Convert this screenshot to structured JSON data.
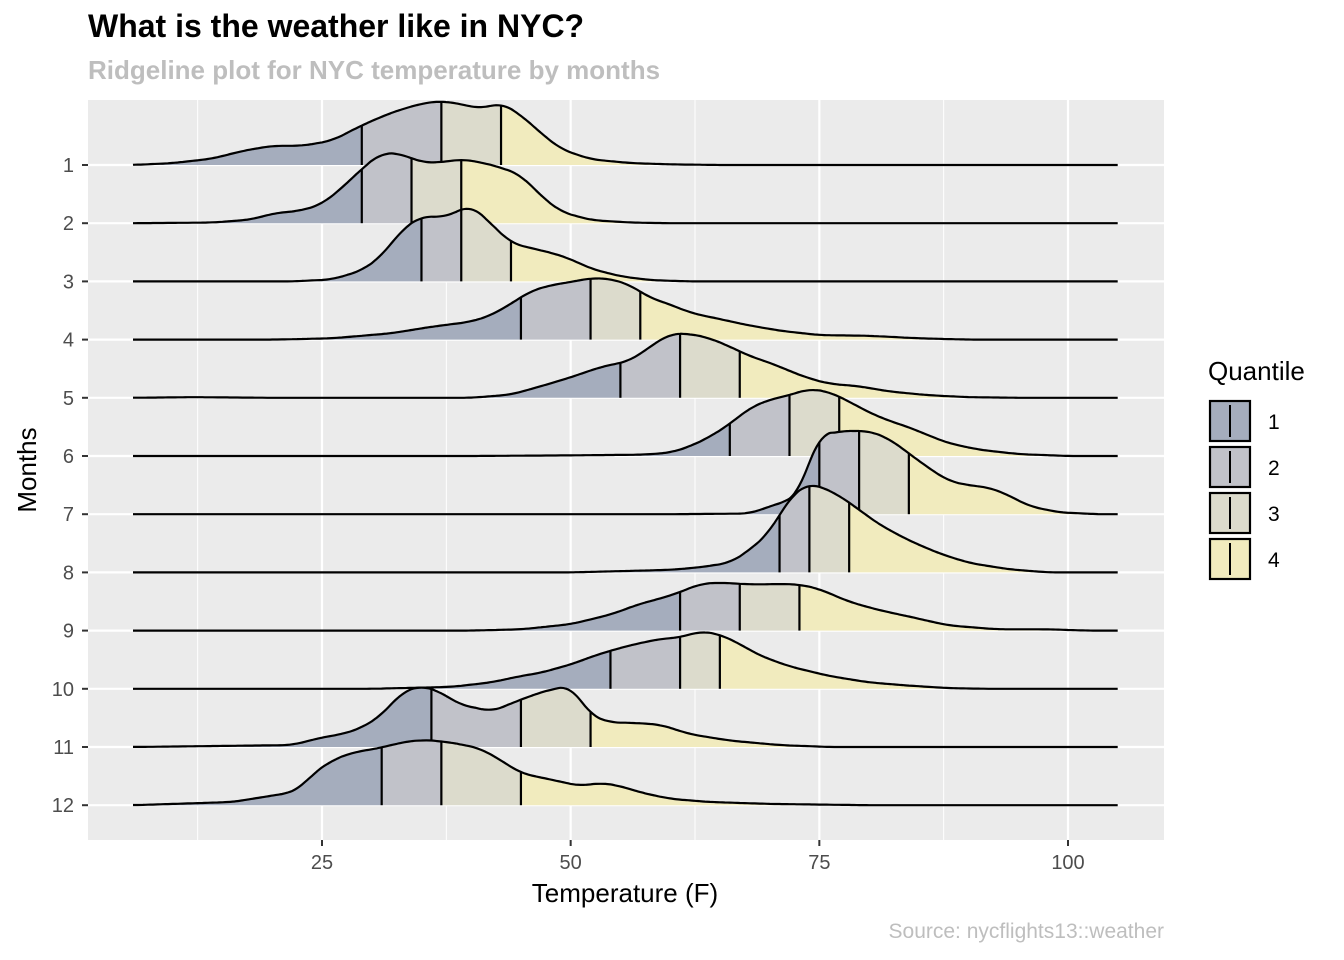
{
  "chart_data": {
    "type": "ridgeline",
    "title": "What is the weather like in NYC?",
    "subtitle": "Ridgeline plot for NYC temperature by months",
    "caption": "Source: nycflights13::weather",
    "xlabel": "Temperature (F)",
    "ylabel": "Months",
    "xlim": [
      5,
      110
    ],
    "x_ticks": [
      25,
      50,
      75,
      100
    ],
    "categories": [
      "1",
      "2",
      "3",
      "4",
      "5",
      "6",
      "7",
      "8",
      "9",
      "10",
      "11",
      "12"
    ],
    "legend": {
      "title": "Quantile",
      "position": "right",
      "entries": [
        {
          "label": "1",
          "color": "#a5adbd"
        },
        {
          "label": "2",
          "color": "#c1c2c9"
        },
        {
          "label": "3",
          "color": "#dcdbcc"
        },
        {
          "label": "4",
          "color": "#f1ebbe"
        }
      ]
    },
    "fill_alpha": 0.5,
    "density_scale_months": 1.1,
    "series": [
      {
        "name": "1",
        "quantiles": [
          29,
          37,
          43
        ],
        "density": [
          [
            6,
            0
          ],
          [
            10,
            0.03
          ],
          [
            14,
            0.1
          ],
          [
            17,
            0.22
          ],
          [
            20,
            0.3
          ],
          [
            23,
            0.3
          ],
          [
            26,
            0.38
          ],
          [
            29,
            0.62
          ],
          [
            32,
            0.82
          ],
          [
            35,
            0.96
          ],
          [
            37,
            1.0
          ],
          [
            39,
            0.95
          ],
          [
            41,
            0.88
          ],
          [
            43,
            0.97
          ],
          [
            45,
            0.78
          ],
          [
            47,
            0.5
          ],
          [
            49,
            0.25
          ],
          [
            52,
            0.09
          ],
          [
            56,
            0.03
          ],
          [
            60,
            0.01
          ],
          [
            65,
            0
          ],
          [
            105,
            0
          ]
        ]
      },
      {
        "name": "2",
        "quantiles": [
          29,
          34,
          39
        ],
        "density": [
          [
            6,
            0
          ],
          [
            14,
            0.01
          ],
          [
            18,
            0.06
          ],
          [
            20,
            0.15
          ],
          [
            23,
            0.2
          ],
          [
            25,
            0.3
          ],
          [
            27,
            0.55
          ],
          [
            29,
            0.85
          ],
          [
            31,
            1.1
          ],
          [
            33,
            1.08
          ],
          [
            35,
            0.95
          ],
          [
            37,
            0.95
          ],
          [
            39,
            1.0
          ],
          [
            41,
            0.95
          ],
          [
            43,
            0.87
          ],
          [
            45,
            0.75
          ],
          [
            47,
            0.43
          ],
          [
            49,
            0.18
          ],
          [
            52,
            0.05
          ],
          [
            56,
            0.01
          ],
          [
            60,
            0
          ],
          [
            105,
            0
          ]
        ]
      },
      {
        "name": "3",
        "quantiles": [
          35,
          39,
          44
        ],
        "density": [
          [
            6,
            0
          ],
          [
            22,
            0
          ],
          [
            26,
            0.03
          ],
          [
            29,
            0.17
          ],
          [
            31,
            0.4
          ],
          [
            33,
            0.8
          ],
          [
            35,
            1.02
          ],
          [
            37,
            1.0
          ],
          [
            38,
            1.05
          ],
          [
            40,
            1.19
          ],
          [
            42,
            0.9
          ],
          [
            44,
            0.6
          ],
          [
            46,
            0.52
          ],
          [
            48,
            0.45
          ],
          [
            50,
            0.35
          ],
          [
            52,
            0.2
          ],
          [
            55,
            0.08
          ],
          [
            58,
            0.02
          ],
          [
            62,
            0
          ],
          [
            105,
            0
          ]
        ]
      },
      {
        "name": "4",
        "quantiles": [
          45,
          52,
          57
        ],
        "density": [
          [
            6,
            0
          ],
          [
            20,
            0
          ],
          [
            26,
            0.02
          ],
          [
            32,
            0.1
          ],
          [
            36,
            0.2
          ],
          [
            40,
            0.28
          ],
          [
            42,
            0.38
          ],
          [
            44,
            0.56
          ],
          [
            46,
            0.76
          ],
          [
            48,
            0.85
          ],
          [
            50,
            0.9
          ],
          [
            52,
            0.96
          ],
          [
            54,
            0.95
          ],
          [
            56,
            0.85
          ],
          [
            58,
            0.65
          ],
          [
            60,
            0.55
          ],
          [
            62,
            0.42
          ],
          [
            65,
            0.32
          ],
          [
            68,
            0.22
          ],
          [
            71,
            0.14
          ],
          [
            75,
            0.07
          ],
          [
            80,
            0.06
          ],
          [
            85,
            0.02
          ],
          [
            90,
            0
          ],
          [
            105,
            0
          ]
        ]
      },
      {
        "name": "5",
        "quantiles": [
          55,
          61,
          67
        ],
        "density": [
          [
            6,
            0
          ],
          [
            12,
            0.01
          ],
          [
            20,
            0
          ],
          [
            30,
            0
          ],
          [
            40,
            0
          ],
          [
            44,
            0.05
          ],
          [
            47,
            0.18
          ],
          [
            50,
            0.32
          ],
          [
            53,
            0.48
          ],
          [
            56,
            0.58
          ],
          [
            58,
            0.8
          ],
          [
            60,
            1.0
          ],
          [
            62,
            1.0
          ],
          [
            64,
            0.93
          ],
          [
            66,
            0.8
          ],
          [
            68,
            0.65
          ],
          [
            70,
            0.55
          ],
          [
            72,
            0.42
          ],
          [
            74,
            0.3
          ],
          [
            76,
            0.22
          ],
          [
            79,
            0.18
          ],
          [
            82,
            0.1
          ],
          [
            86,
            0.04
          ],
          [
            90,
            0.01
          ],
          [
            95,
            0
          ],
          [
            105,
            0
          ]
        ]
      },
      {
        "name": "6",
        "quantiles": [
          66,
          72,
          77
        ],
        "density": [
          [
            6,
            0
          ],
          [
            40,
            0
          ],
          [
            50,
            0.01
          ],
          [
            57,
            0.02
          ],
          [
            60,
            0.05
          ],
          [
            62,
            0.15
          ],
          [
            64,
            0.3
          ],
          [
            66,
            0.5
          ],
          [
            68,
            0.75
          ],
          [
            70,
            0.88
          ],
          [
            72,
            0.95
          ],
          [
            74,
            1.05
          ],
          [
            76,
            1.0
          ],
          [
            78,
            0.85
          ],
          [
            80,
            0.68
          ],
          [
            82,
            0.55
          ],
          [
            84,
            0.45
          ],
          [
            86,
            0.32
          ],
          [
            88,
            0.2
          ],
          [
            91,
            0.1
          ],
          [
            95,
            0.03
          ],
          [
            100,
            0
          ],
          [
            105,
            0
          ]
        ]
      },
      {
        "name": "7",
        "quantiles": [
          75,
          79,
          84
        ],
        "density": [
          [
            6,
            0
          ],
          [
            50,
            0
          ],
          [
            60,
            0
          ],
          [
            68,
            0.01
          ],
          [
            70,
            0.12
          ],
          [
            72,
            0.22
          ],
          [
            73,
            0.35
          ],
          [
            74,
            0.82
          ],
          [
            75,
            1.25
          ],
          [
            76,
            1.25
          ],
          [
            77,
            1.3
          ],
          [
            78,
            1.3
          ],
          [
            80,
            1.3
          ],
          [
            82,
            1.18
          ],
          [
            84,
            0.95
          ],
          [
            86,
            0.72
          ],
          [
            88,
            0.52
          ],
          [
            90,
            0.45
          ],
          [
            92,
            0.42
          ],
          [
            94,
            0.3
          ],
          [
            96,
            0.13
          ],
          [
            99,
            0.03
          ],
          [
            103,
            0
          ],
          [
            105,
            0
          ]
        ]
      },
      {
        "name": "8",
        "quantiles": [
          71,
          74,
          78
        ],
        "density": [
          [
            6,
            0
          ],
          [
            50,
            0
          ],
          [
            60,
            0.04
          ],
          [
            63,
            0.08
          ],
          [
            66,
            0.15
          ],
          [
            68,
            0.35
          ],
          [
            70,
            0.63
          ],
          [
            71,
            0.9
          ],
          [
            72,
            1.15
          ],
          [
            73,
            1.3
          ],
          [
            74,
            1.38
          ],
          [
            75,
            1.35
          ],
          [
            77,
            1.2
          ],
          [
            79,
            0.98
          ],
          [
            81,
            0.75
          ],
          [
            84,
            0.5
          ],
          [
            87,
            0.3
          ],
          [
            90,
            0.15
          ],
          [
            94,
            0.05
          ],
          [
            98,
            0
          ],
          [
            105,
            0
          ]
        ]
      },
      {
        "name": "9",
        "quantiles": [
          61,
          67,
          73
        ],
        "density": [
          [
            6,
            0
          ],
          [
            40,
            0
          ],
          [
            45,
            0.02
          ],
          [
            50,
            0.1
          ],
          [
            54,
            0.25
          ],
          [
            57,
            0.42
          ],
          [
            59,
            0.5
          ],
          [
            61,
            0.6
          ],
          [
            63,
            0.73
          ],
          [
            65,
            0.75
          ],
          [
            67,
            0.73
          ],
          [
            69,
            0.72
          ],
          [
            71,
            0.73
          ],
          [
            73,
            0.72
          ],
          [
            75,
            0.65
          ],
          [
            78,
            0.45
          ],
          [
            81,
            0.32
          ],
          [
            84,
            0.22
          ],
          [
            88,
            0.08
          ],
          [
            93,
            0.02
          ],
          [
            98,
            0.02
          ],
          [
            102,
            0
          ],
          [
            105,
            0
          ]
        ]
      },
      {
        "name": "10",
        "quantiles": [
          54,
          61,
          65
        ],
        "density": [
          [
            6,
            0
          ],
          [
            30,
            0
          ],
          [
            38,
            0.03
          ],
          [
            42,
            0.1
          ],
          [
            45,
            0.2
          ],
          [
            47,
            0.25
          ],
          [
            50,
            0.38
          ],
          [
            53,
            0.55
          ],
          [
            56,
            0.68
          ],
          [
            59,
            0.78
          ],
          [
            61,
            0.8
          ],
          [
            63,
            0.9
          ],
          [
            65,
            0.85
          ],
          [
            67,
            0.7
          ],
          [
            69,
            0.52
          ],
          [
            72,
            0.35
          ],
          [
            76,
            0.2
          ],
          [
            80,
            0.1
          ],
          [
            84,
            0.05
          ],
          [
            88,
            0.01
          ],
          [
            92,
            0
          ],
          [
            105,
            0
          ]
        ]
      },
      {
        "name": "11",
        "quantiles": [
          36,
          45,
          52
        ],
        "density": [
          [
            6,
            0
          ],
          [
            22,
            0.03
          ],
          [
            25,
            0.15
          ],
          [
            27,
            0.2
          ],
          [
            29,
            0.3
          ],
          [
            31,
            0.5
          ],
          [
            33,
            0.85
          ],
          [
            35,
            0.96
          ],
          [
            37,
            0.85
          ],
          [
            39,
            0.65
          ],
          [
            41,
            0.6
          ],
          [
            42,
            0.55
          ],
          [
            44,
            0.68
          ],
          [
            46,
            0.8
          ],
          [
            48,
            0.9
          ],
          [
            50,
            0.95
          ],
          [
            52,
            0.5
          ],
          [
            54,
            0.38
          ],
          [
            56,
            0.38
          ],
          [
            59,
            0.35
          ],
          [
            62,
            0.2
          ],
          [
            66,
            0.1
          ],
          [
            71,
            0.03
          ],
          [
            76,
            0
          ],
          [
            105,
            0
          ]
        ]
      },
      {
        "name": "12",
        "quantiles": [
          31,
          37,
          45
        ],
        "density": [
          [
            6,
            0
          ],
          [
            16,
            0.05
          ],
          [
            18,
            0.1
          ],
          [
            20,
            0.15
          ],
          [
            22,
            0.2
          ],
          [
            23,
            0.3
          ],
          [
            24,
            0.48
          ],
          [
            26,
            0.7
          ],
          [
            28,
            0.82
          ],
          [
            31,
            0.9
          ],
          [
            33,
            0.98
          ],
          [
            35,
            1.02
          ],
          [
            37,
            1.0
          ],
          [
            39,
            0.95
          ],
          [
            41,
            0.88
          ],
          [
            43,
            0.7
          ],
          [
            45,
            0.5
          ],
          [
            48,
            0.4
          ],
          [
            51,
            0.3
          ],
          [
            53,
            0.35
          ],
          [
            55,
            0.3
          ],
          [
            57,
            0.2
          ],
          [
            60,
            0.1
          ],
          [
            64,
            0.05
          ],
          [
            70,
            0.02
          ],
          [
            80,
            0
          ],
          [
            105,
            0
          ]
        ]
      }
    ]
  }
}
